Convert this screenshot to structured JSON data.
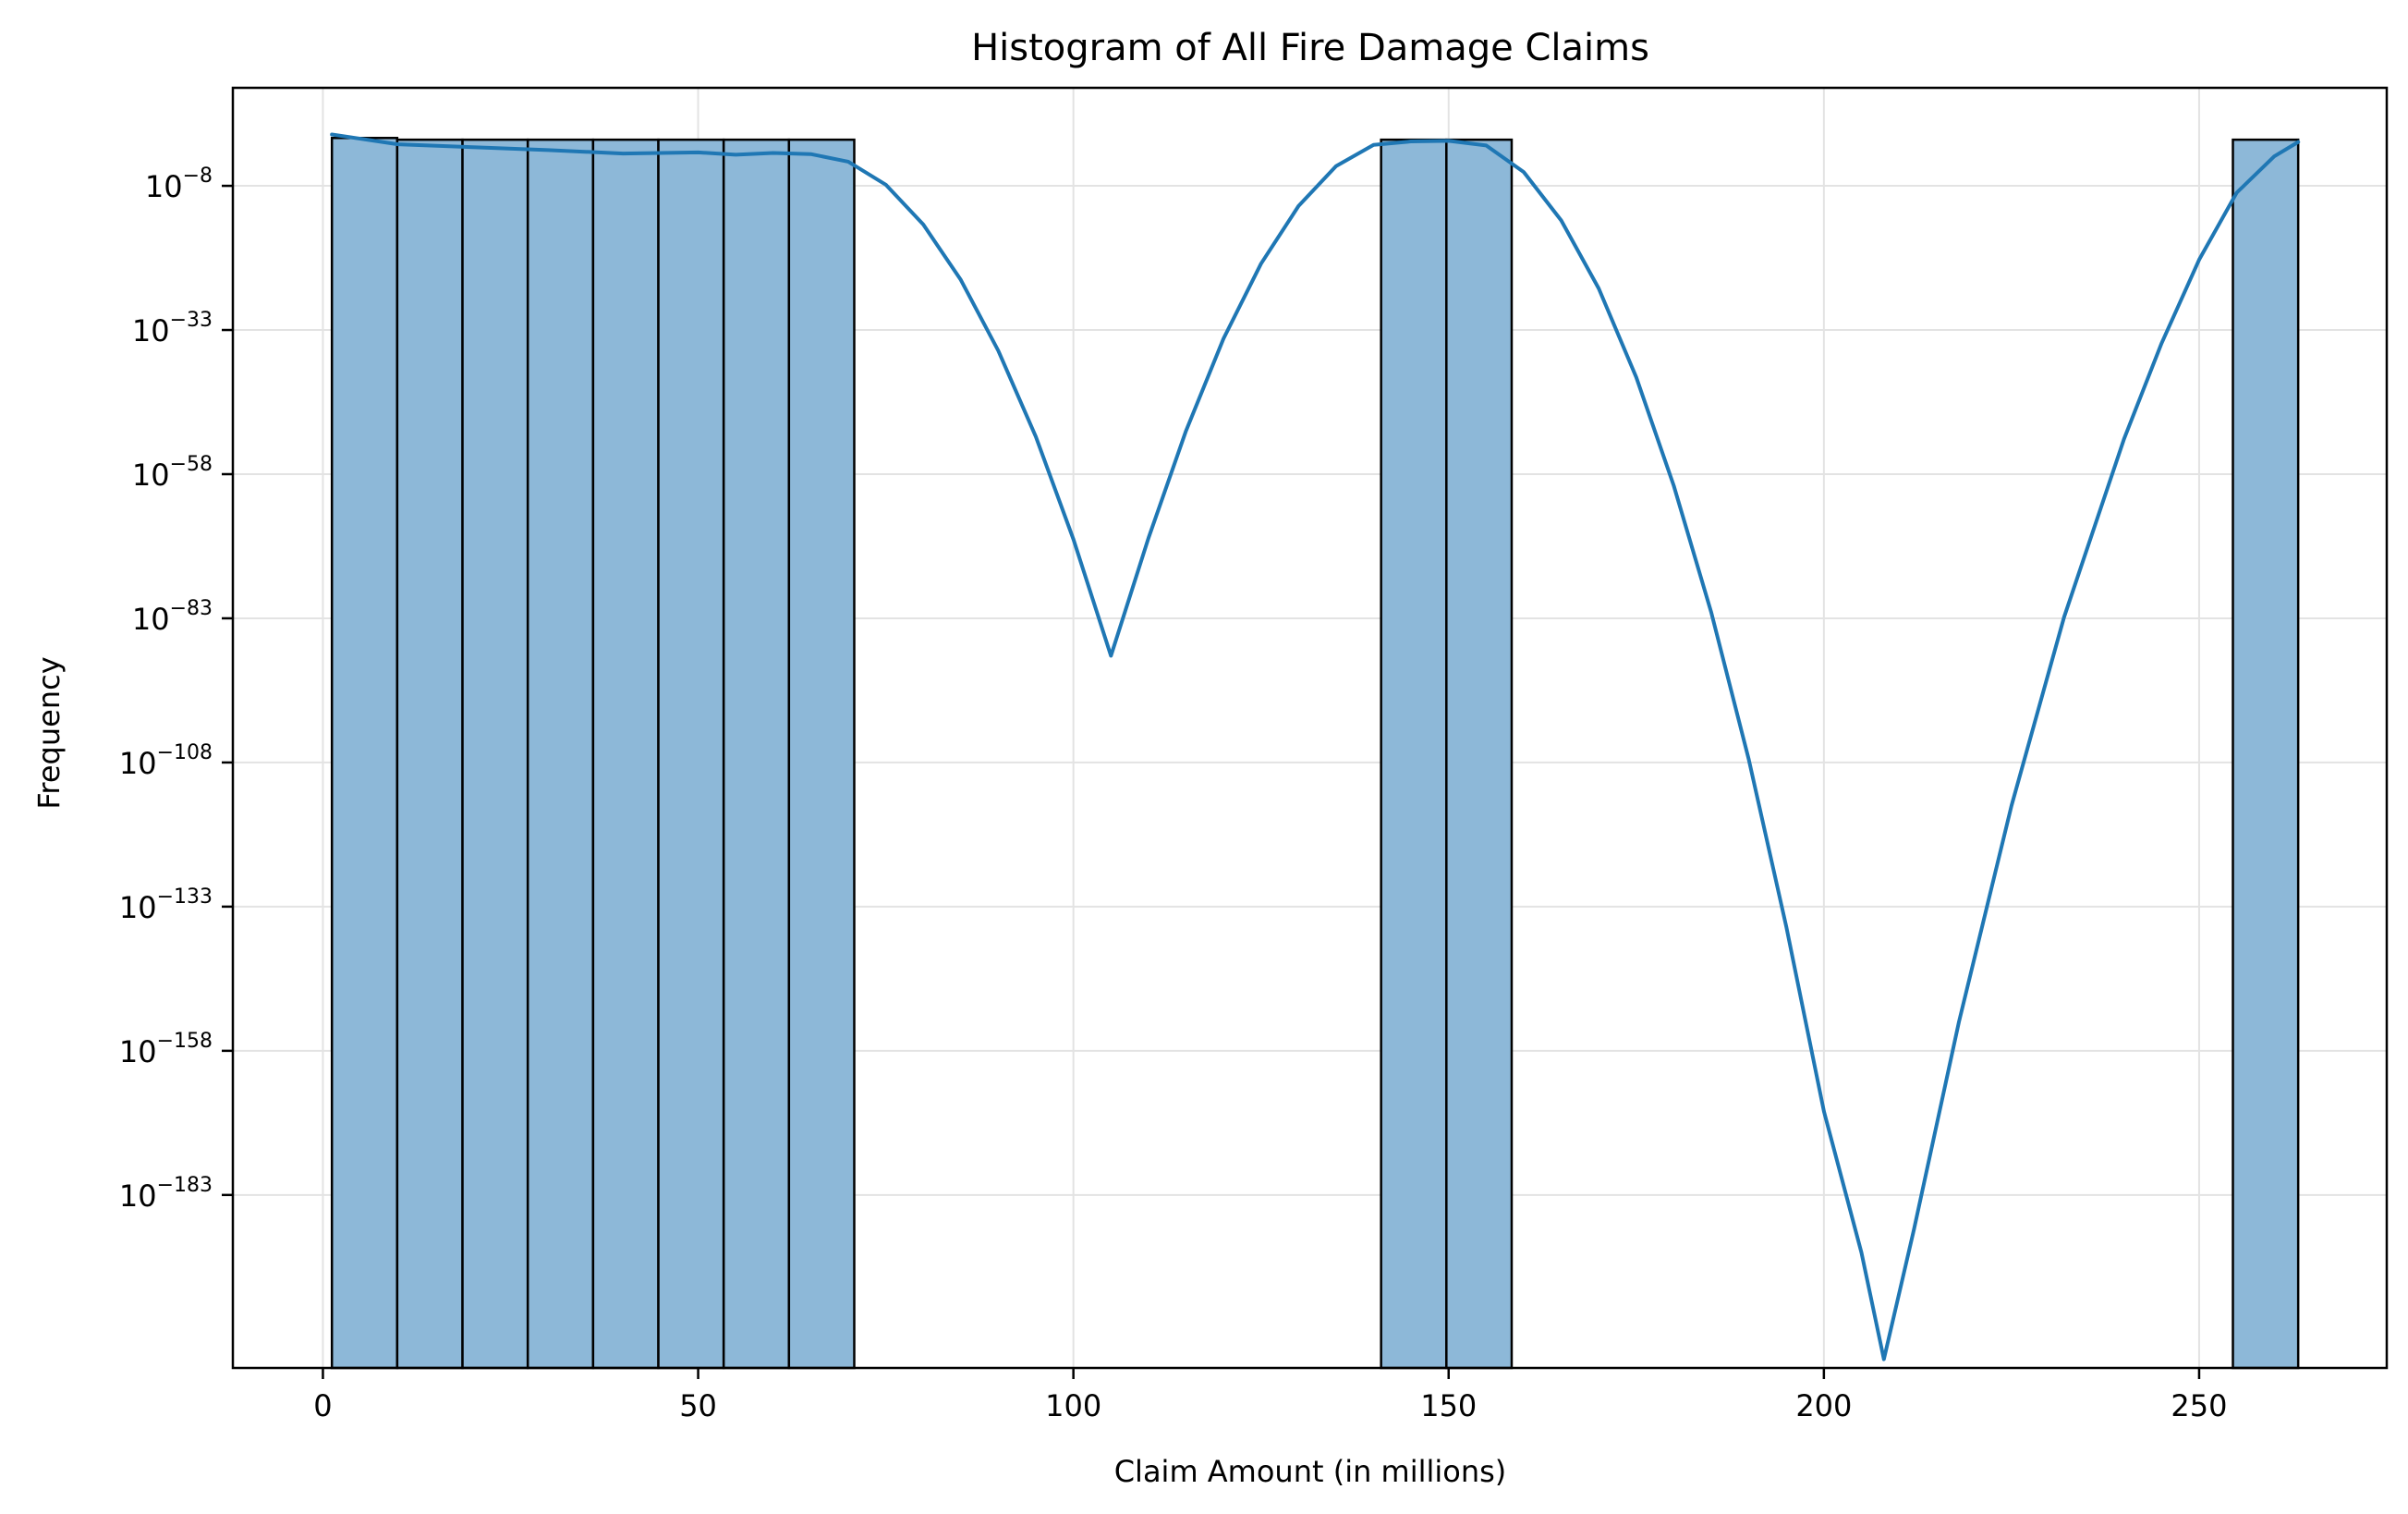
{
  "chart_data": {
    "type": "bar",
    "subtype": "histogram-with-kde",
    "title": "Histogram of All Fire Damage Claims",
    "xlabel": "Claim Amount (in millions)",
    "ylabel": "Frequency",
    "xlim": [
      -12,
      275
    ],
    "yscale": "log",
    "ylim_exponent": [
      -213,
      9
    ],
    "grid": true,
    "x_ticks": [
      0,
      50,
      100,
      150,
      200,
      250
    ],
    "y_tick_exponents": [
      -8,
      -33,
      -58,
      -83,
      -108,
      -133,
      -158,
      -183
    ],
    "bar_color": "#8db8d8",
    "line_color": "#1f77b4",
    "bins": [
      {
        "x0": 1.2,
        "x1": 9.9,
        "count": 2
      },
      {
        "x0": 9.9,
        "x1": 18.6,
        "count": 1
      },
      {
        "x0": 18.6,
        "x1": 27.3,
        "count": 1
      },
      {
        "x0": 27.3,
        "x1": 36.0,
        "count": 1
      },
      {
        "x0": 36.0,
        "x1": 44.7,
        "count": 1
      },
      {
        "x0": 44.7,
        "x1": 53.4,
        "count": 1
      },
      {
        "x0": 53.4,
        "x1": 62.1,
        "count": 1
      },
      {
        "x0": 62.1,
        "x1": 70.8,
        "count": 1
      },
      {
        "x0": 141.0,
        "x1": 149.7,
        "count": 1
      },
      {
        "x0": 149.7,
        "x1": 158.4,
        "count": 1
      },
      {
        "x0": 254.5,
        "x1": 263.2,
        "count": 1
      }
    ],
    "kde": {
      "name": "",
      "x": [
        1.2,
        10,
        20,
        30,
        40,
        50,
        55,
        60,
        65,
        70,
        75,
        80,
        85,
        90,
        95,
        100,
        105,
        110,
        115,
        120,
        125,
        130,
        135,
        140,
        145,
        150,
        155,
        160,
        165,
        170,
        175,
        180,
        185,
        190,
        195,
        200,
        205,
        208,
        212,
        218,
        225,
        232,
        240,
        245,
        250,
        255,
        260,
        263.2
      ],
      "log_y": [
        0.9,
        -0.8,
        -1.3,
        -1.8,
        -2.4,
        -2.2,
        -2.6,
        -2.3,
        -2.5,
        -3.8,
        -7.8,
        -14.7,
        -24.3,
        -36.6,
        -51.5,
        -69.3,
        -89.5,
        -69.1,
        -50.5,
        -34.5,
        -21.5,
        -11.5,
        -4.6,
        -0.9,
        -0.3,
        -0.2,
        -1.0,
        -5.6,
        -14.0,
        -25.8,
        -41.2,
        -60.0,
        -82.0,
        -107.5,
        -136.5,
        -168.5,
        -193.0,
        -211.5,
        -189.0,
        -153.0,
        -115.5,
        -82.8,
        -51.9,
        -35.3,
        -20.8,
        -9.2,
        -2.9,
        -0.4
      ]
    }
  }
}
